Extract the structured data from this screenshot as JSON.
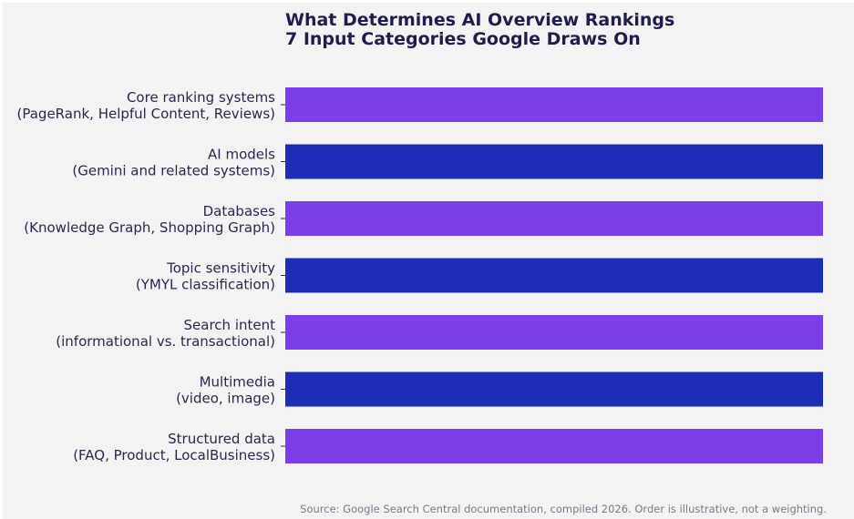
{
  "chart_data": {
    "type": "bar",
    "orientation": "horizontal",
    "title": [
      "What Determines AI Overview Rankings",
      "7 Input Categories Google Draws On"
    ],
    "categories": [
      [
        "Core ranking systems",
        "(PageRank, Helpful Content, Reviews)"
      ],
      [
        "AI models",
        "(Gemini and related systems)"
      ],
      [
        "Databases",
        "(Knowledge Graph, Shopping Graph)"
      ],
      [
        "Topic sensitivity",
        "(YMYL classification)"
      ],
      [
        "Search intent",
        "(informational vs. transactional)"
      ],
      [
        "Multimedia",
        "(video, image)"
      ],
      [
        "Structured data",
        "(FAQ, Product, LocalBusiness)"
      ]
    ],
    "values": [
      1,
      1,
      1,
      1,
      1,
      1,
      1
    ],
    "colors": [
      "#7b3fea",
      "#1c2db7",
      "#7b3fea",
      "#1c2db7",
      "#7b3fea",
      "#1c2db7",
      "#7b3fea"
    ],
    "xlim": [
      0,
      1
    ],
    "grid": false,
    "xaxis_visible": false,
    "footnote": "Source: Google Search Central documentation, compiled 2026. Order is illustrative, not a weighting."
  }
}
